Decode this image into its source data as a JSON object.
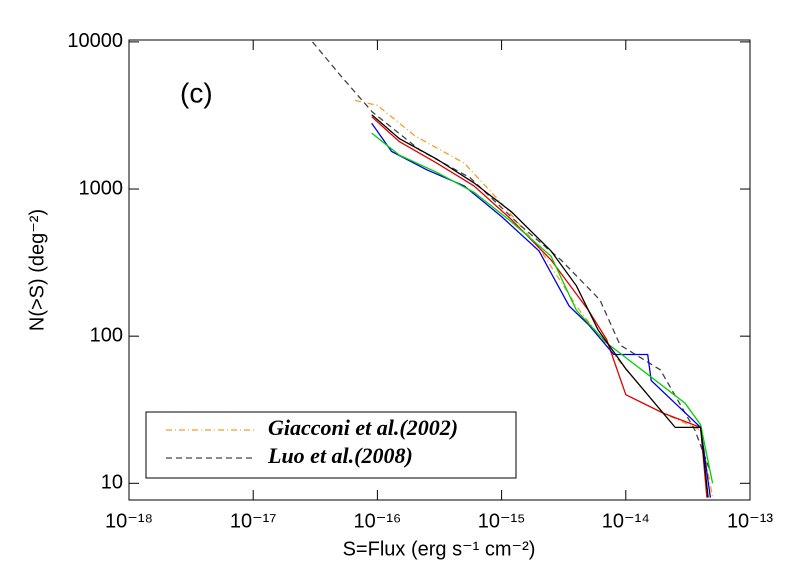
{
  "chart_data": {
    "type": "line",
    "annotation": "(c)",
    "xlabel": "S=Flux (erg s⁻¹ cm⁻²)",
    "ylabel": "N(>S) (deg⁻²)",
    "xscale": "log",
    "yscale": "log",
    "xlim": [
      1e-18,
      1e-13
    ],
    "ylim": [
      7.7,
      10300
    ],
    "xticks": [
      {
        "value": 1e-18,
        "label": "10⁻¹⁸"
      },
      {
        "value": 1e-17,
        "label": "10⁻¹⁷"
      },
      {
        "value": 1e-16,
        "label": "10⁻¹⁶"
      },
      {
        "value": 1e-15,
        "label": "10⁻¹⁵"
      },
      {
        "value": 1e-14,
        "label": "10⁻¹⁴"
      },
      {
        "value": 1e-13,
        "label": "10⁻¹³"
      }
    ],
    "yticks": [
      10,
      100,
      1000,
      10000
    ],
    "legend": "lower left",
    "series": [
      {
        "name": "Giacconi et al.(2002)",
        "color": "#f0a020",
        "dash": "dashdot",
        "x": [
          6.6e-17,
          1e-16,
          2e-16,
          5e-16,
          1e-15,
          2e-15,
          4e-15,
          8e-15,
          2e-14,
          4e-14,
          5e-14
        ],
        "values": [
          4000,
          3700,
          2300,
          1500,
          800,
          400,
          160,
          75,
          30,
          23,
          8
        ]
      },
      {
        "name": "Luo et al.(2008)",
        "color": "#444444",
        "dash": "dashed",
        "x": [
          3e-17,
          5e-17,
          9.1e-17,
          2.2e-16,
          5.6e-16,
          1.4e-15,
          3e-15,
          6.2e-15,
          9e-15,
          1.9e-14,
          3.6e-14,
          4.8e-14
        ],
        "values": [
          10000,
          5970,
          3340,
          1840,
          1190,
          570,
          330,
          176,
          87,
          59,
          23,
          12
        ]
      },
      {
        "color": "#e00000",
        "dash": "solid",
        "x": [
          9e-17,
          1.5e-16,
          3e-16,
          6e-16,
          1.2e-15,
          2.5e-15,
          5e-15,
          7e-15,
          1e-14,
          2e-14,
          4e-14,
          4.5e-14
        ],
        "values": [
          3100,
          2100,
          1500,
          1050,
          620,
          330,
          150,
          95,
          40,
          30,
          24,
          8
        ]
      },
      {
        "color": "#0000e0",
        "dash": "solid",
        "x": [
          9e-17,
          1.3e-16,
          2.5e-16,
          5e-16,
          1e-15,
          2e-15,
          3.5e-15,
          5e-15,
          8e-15,
          1.5e-14,
          1.6e-14,
          4e-14,
          4.8e-14
        ],
        "values": [
          2800,
          1800,
          1350,
          1050,
          650,
          380,
          160,
          120,
          75,
          75,
          50,
          24,
          8
        ]
      },
      {
        "color": "#00d000",
        "dash": "solid",
        "x": [
          9e-17,
          1.5e-16,
          3e-16,
          6e-16,
          1.2e-15,
          2.5e-15,
          4e-15,
          7e-15,
          1.5e-14,
          3e-14,
          4e-14,
          5e-14
        ],
        "values": [
          2400,
          1700,
          1300,
          950,
          600,
          350,
          150,
          90,
          55,
          35,
          25,
          10
        ]
      },
      {
        "color": "#000000",
        "dash": "solid",
        "x": [
          9e-17,
          1.5e-16,
          3e-16,
          6e-16,
          1.2e-15,
          2.5e-15,
          4e-15,
          6e-15,
          1e-14,
          2.5e-14,
          4e-14,
          4.6e-14
        ],
        "values": [
          3200,
          2200,
          1600,
          1100,
          700,
          380,
          220,
          110,
          60,
          24,
          24,
          8
        ]
      }
    ]
  }
}
